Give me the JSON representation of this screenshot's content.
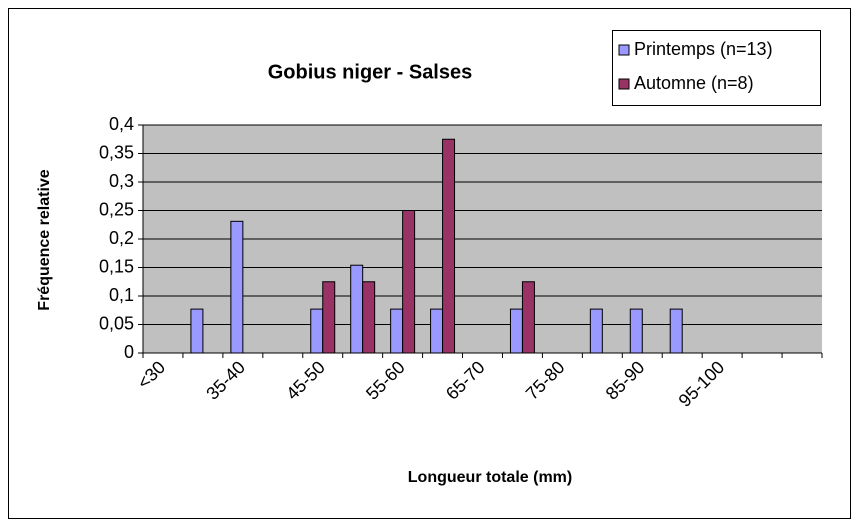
{
  "chart_data": {
    "type": "bar",
    "title": "Gobius niger - Salses",
    "x_label": "Longueur totale (mm)",
    "y_label": "Fréquence relative",
    "categories": [
      "<30",
      null,
      "35-40",
      null,
      "45-50",
      null,
      "55-60",
      null,
      "65-70",
      null,
      "75-80",
      null,
      "85-90",
      null,
      "95-100",
      null,
      null
    ],
    "series": [
      {
        "name": "Printemps (n=13)",
        "color": "#9999ff",
        "values": [
          0,
          0.077,
          0.231,
          0,
          0.077,
          0.154,
          0.077,
          0.077,
          0,
          0.077,
          0,
          0.077,
          0.077,
          0.077,
          0,
          0,
          0
        ]
      },
      {
        "name": "Automne (n=8)",
        "color": "#993366",
        "values": [
          0,
          0,
          0,
          0,
          0.125,
          0.125,
          0.25,
          0.375,
          0,
          0.125,
          0,
          0,
          0,
          0,
          0,
          0,
          0
        ]
      }
    ],
    "ylim": [
      0,
      0.4
    ],
    "yticks": [
      0,
      {
        "value": 0.05,
        "label": "0,05"
      },
      {
        "value": 0.1,
        "label": "0,1"
      },
      {
        "value": 0.15,
        "label": "0,15"
      },
      {
        "value": 0.2,
        "label": "0,2"
      },
      {
        "value": 0.25,
        "label": "0,25"
      },
      {
        "value": 0.3,
        "label": "0,3"
      },
      {
        "value": 0.35,
        "label": "0,35"
      },
      {
        "value": 0.4,
        "label": "0,4"
      }
    ],
    "grid": true,
    "legend": "top-right",
    "plot_background": "#c0c0c0"
  }
}
